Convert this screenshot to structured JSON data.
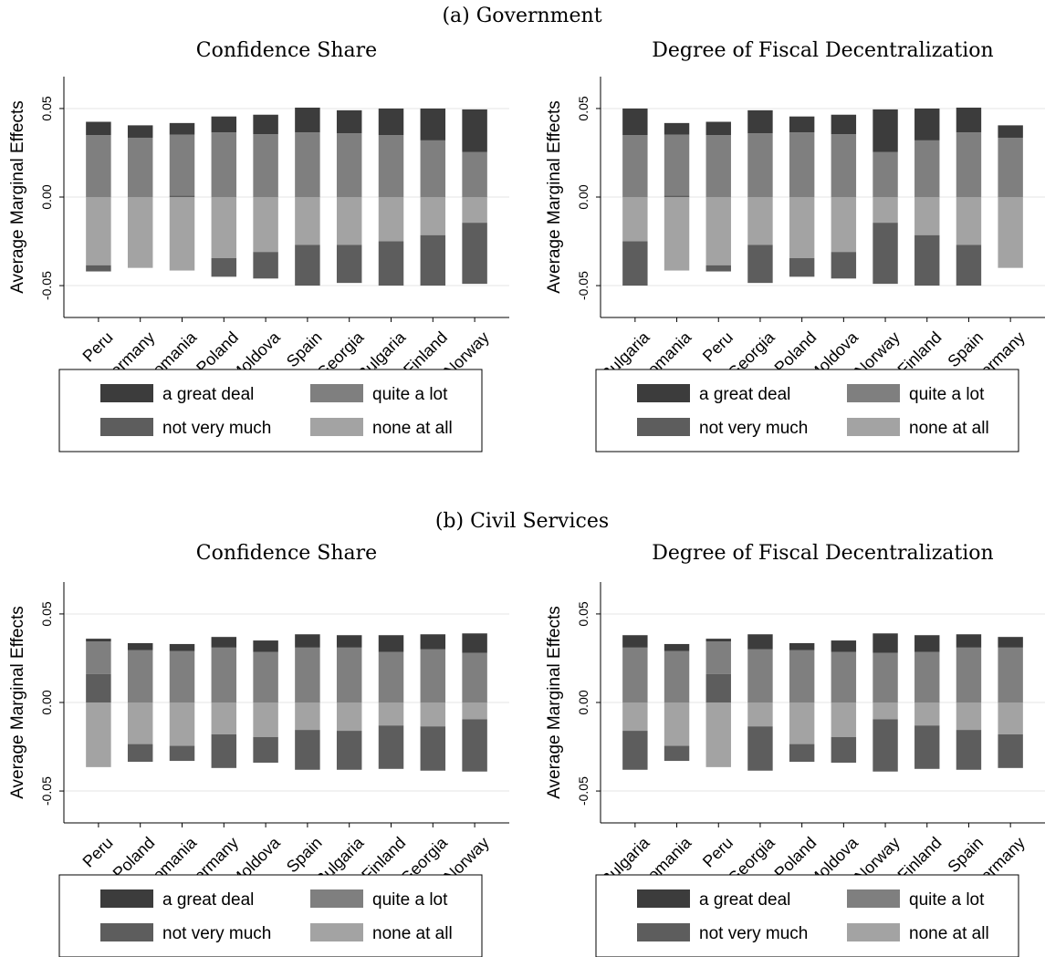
{
  "figure": {
    "panel_a_title": "(a) Government",
    "panel_b_title": "(b) Civil Services"
  },
  "colors": {
    "a great deal": "#3c3c3c",
    "quite a lot": "#7f7f7f",
    "not very much": "#5d5d5d",
    "none at all": "#a3a3a3"
  },
  "chart_data": [
    {
      "type": "bar",
      "stacked": "diverging",
      "panel": "(a) Government",
      "title": "Confidence Share",
      "ylabel": "Average Marginal Effects",
      "ylim": [
        -0.068,
        0.068
      ],
      "yticks": [
        "0.05",
        "0.00",
        "-0.05"
      ],
      "ytick_values": [
        0.05,
        0.0,
        -0.05
      ],
      "grid": true,
      "categories": [
        "Peru",
        "Germany",
        "Romania",
        "Poland",
        "Moldova",
        "Spain",
        "Georgia",
        "Bulgaria",
        "Finland",
        "Norway"
      ],
      "series": [
        {
          "name": "a great deal",
          "values": [
            0.0075,
            0.007,
            0.0065,
            0.009,
            0.011,
            0.014,
            0.013,
            0.015,
            0.018,
            0.024
          ]
        },
        {
          "name": "quite a lot",
          "values": [
            0.035,
            0.0335,
            0.0345,
            0.0365,
            0.0355,
            0.0365,
            0.036,
            0.035,
            0.032,
            0.0255
          ]
        },
        {
          "name": "not very much",
          "values": [
            -0.0035,
            0.0,
            0.0008,
            -0.0105,
            -0.015,
            -0.023,
            -0.0215,
            -0.025,
            -0.0285,
            -0.0345
          ]
        },
        {
          "name": "none at all",
          "values": [
            -0.0385,
            -0.04,
            -0.0415,
            -0.0345,
            -0.031,
            -0.027,
            -0.027,
            -0.025,
            -0.0215,
            -0.0145
          ]
        }
      ],
      "legend": [
        "a great deal",
        "quite a lot",
        "not very much",
        "none at all"
      ],
      "legend_position": "bottom"
    },
    {
      "type": "bar",
      "stacked": "diverging",
      "panel": "(a) Government",
      "title": "Degree of Fiscal Decentralization",
      "ylabel": "Average Marginal Effects",
      "ylim": [
        -0.068,
        0.068
      ],
      "yticks": [
        "0.05",
        "0.00",
        "-0.05"
      ],
      "ytick_values": [
        0.05,
        0.0,
        -0.05
      ],
      "grid": true,
      "categories": [
        "Bulgaria",
        "Romania",
        "Peru",
        "Georgia",
        "Poland",
        "Moldova",
        "Norway",
        "Finland",
        "Spain",
        "Germany"
      ],
      "series": [
        {
          "name": "a great deal",
          "values": [
            0.015,
            0.0065,
            0.0075,
            0.013,
            0.009,
            0.011,
            0.024,
            0.018,
            0.014,
            0.007
          ]
        },
        {
          "name": "quite a lot",
          "values": [
            0.035,
            0.0345,
            0.035,
            0.036,
            0.0365,
            0.0355,
            0.0255,
            0.032,
            0.0365,
            0.0335
          ]
        },
        {
          "name": "not very much",
          "values": [
            -0.025,
            0.0008,
            -0.0035,
            -0.0215,
            -0.0105,
            -0.015,
            -0.0345,
            -0.0285,
            -0.023,
            0.0
          ]
        },
        {
          "name": "none at all",
          "values": [
            -0.025,
            -0.0415,
            -0.0385,
            -0.027,
            -0.0345,
            -0.031,
            -0.0145,
            -0.0215,
            -0.027,
            -0.04
          ]
        }
      ],
      "legend": [
        "a great deal",
        "quite a lot",
        "not very much",
        "none at all"
      ],
      "legend_position": "bottom"
    },
    {
      "type": "bar",
      "stacked": "diverging",
      "panel": "(b) Civil Services",
      "title": "Confidence Share",
      "ylabel": "Average Marginal Effects",
      "ylim": [
        -0.068,
        0.068
      ],
      "yticks": [
        "0.05",
        "0.00",
        "-0.05"
      ],
      "ytick_values": [
        0.05,
        0.0,
        -0.05
      ],
      "grid": true,
      "categories": [
        "Peru",
        "Poland",
        "Romania",
        "Germany",
        "Moldova",
        "Spain",
        "Bulgaria",
        "Finland",
        "Georgia",
        "Norway"
      ],
      "series": [
        {
          "name": "a great deal",
          "values": [
            0.0015,
            0.004,
            0.004,
            0.006,
            0.0065,
            0.0075,
            0.007,
            0.0095,
            0.0085,
            0.011
          ]
        },
        {
          "name": "quite a lot",
          "values": [
            0.0185,
            0.0295,
            0.029,
            0.031,
            0.0285,
            0.031,
            0.031,
            0.0285,
            0.03,
            0.028
          ]
        },
        {
          "name": "not very much",
          "values": [
            0.016,
            -0.01,
            -0.0085,
            -0.019,
            -0.0145,
            -0.0225,
            -0.022,
            -0.0245,
            -0.025,
            -0.0295
          ]
        },
        {
          "name": "none at all",
          "values": [
            -0.0365,
            -0.0235,
            -0.0245,
            -0.018,
            -0.0195,
            -0.0155,
            -0.016,
            -0.013,
            -0.0135,
            -0.0095
          ]
        }
      ],
      "legend": [
        "a great deal",
        "quite a lot",
        "not very much",
        "none at all"
      ],
      "legend_position": "bottom"
    },
    {
      "type": "bar",
      "stacked": "diverging",
      "panel": "(b) Civil Services",
      "title": "Degree of Fiscal Decentralization",
      "ylabel": "Average Marginal Effects",
      "ylim": [
        -0.068,
        0.068
      ],
      "yticks": [
        "0.05",
        "0.00",
        "-0.05"
      ],
      "ytick_values": [
        0.05,
        0.0,
        -0.05
      ],
      "grid": true,
      "categories": [
        "Bulgaria",
        "Romania",
        "Peru",
        "Georgia",
        "Poland",
        "Moldova",
        "Norway",
        "Finland",
        "Spain",
        "Germany"
      ],
      "series": [
        {
          "name": "a great deal",
          "values": [
            0.007,
            0.004,
            0.0015,
            0.0085,
            0.004,
            0.0065,
            0.011,
            0.0095,
            0.0075,
            0.006
          ]
        },
        {
          "name": "quite a lot",
          "values": [
            0.031,
            0.029,
            0.0185,
            0.03,
            0.0295,
            0.0285,
            0.028,
            0.0285,
            0.031,
            0.031
          ]
        },
        {
          "name": "not very much",
          "values": [
            -0.022,
            -0.0085,
            0.016,
            -0.025,
            -0.01,
            -0.0145,
            -0.0295,
            -0.0245,
            -0.0225,
            -0.019
          ]
        },
        {
          "name": "none at all",
          "values": [
            -0.016,
            -0.0245,
            -0.0365,
            -0.0135,
            -0.0235,
            -0.0195,
            -0.0095,
            -0.013,
            -0.0155,
            -0.018
          ]
        }
      ],
      "legend": [
        "a great deal",
        "quite a lot",
        "not very much",
        "none at all"
      ],
      "legend_position": "bottom"
    }
  ]
}
